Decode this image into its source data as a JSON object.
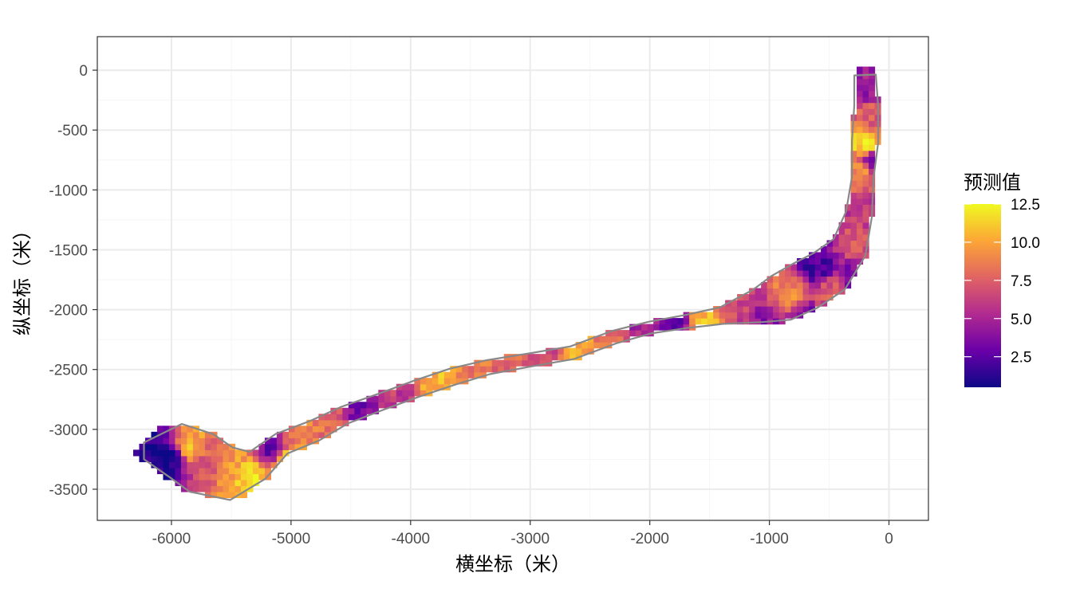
{
  "chart_data": {
    "type": "heatmap",
    "xlabel": "横坐标（米）",
    "ylabel": "纵坐标（米）",
    "xlim": [
      -6620,
      330
    ],
    "ylim": [
      -3760,
      280
    ],
    "x_ticks": [
      -6000,
      -5000,
      -4000,
      -3000,
      -2000,
      -1000,
      0
    ],
    "x_tick_labels": [
      "-6000",
      "-5000",
      "-4000",
      "-3000",
      "-2000",
      "-1000",
      "0"
    ],
    "y_ticks": [
      0,
      -500,
      -1000,
      -1500,
      -2000,
      -2500,
      -3000,
      -3500
    ],
    "y_tick_labels": [
      "0",
      "-500",
      "-1000",
      "-1500",
      "-2000",
      "-2500",
      "-3000",
      "-3500"
    ],
    "grid": true,
    "legend": {
      "title": "预测值",
      "placement": "right",
      "min": 0.5,
      "max": 12.5,
      "breaks": [
        2.5,
        5.0,
        7.5,
        10.0,
        12.5
      ],
      "break_labels": [
        "2.5",
        "5.0",
        "7.5",
        "10.0",
        "12.5"
      ],
      "palette": [
        "#0d0887",
        "#6a00a8",
        "#b12a90",
        "#e16462",
        "#fca636",
        "#f0f921"
      ]
    },
    "boundary_color": "#888888",
    "cell_size": 50,
    "centerline": [
      [
        -6230,
        -3180
      ],
      [
        -5960,
        -3180
      ],
      [
        -5750,
        -3280
      ],
      [
        -5500,
        -3370
      ],
      [
        -5280,
        -3300
      ],
      [
        -5080,
        -3120
      ],
      [
        -4800,
        -3010
      ],
      [
        -4550,
        -2880
      ],
      [
        -4250,
        -2770
      ],
      [
        -3950,
        -2660
      ],
      [
        -3650,
        -2560
      ],
      [
        -3350,
        -2480
      ],
      [
        -3000,
        -2420
      ],
      [
        -2650,
        -2360
      ],
      [
        -2300,
        -2230
      ],
      [
        -2000,
        -2150
      ],
      [
        -1700,
        -2100
      ],
      [
        -1400,
        -2050
      ],
      [
        -1100,
        -1970
      ],
      [
        -900,
        -1900
      ],
      [
        -700,
        -1800
      ],
      [
        -500,
        -1680
      ],
      [
        -330,
        -1480
      ],
      [
        -250,
        -1200
      ],
      [
        -220,
        -900
      ],
      [
        -200,
        -600
      ],
      [
        -190,
        -300
      ],
      [
        -200,
        -40
      ]
    ],
    "half_widths": [
      70,
      230,
      260,
      220,
      130,
      95,
      90,
      75,
      70,
      70,
      70,
      60,
      55,
      55,
      55,
      50,
      55,
      70,
      140,
      200,
      210,
      200,
      150,
      110,
      90,
      110,
      100,
      90
    ],
    "anchors": [
      [
        -6150,
        -3200,
        1.0
      ],
      [
        -6000,
        -3230,
        0.8
      ],
      [
        -5850,
        -3150,
        10.5
      ],
      [
        -5700,
        -3280,
        7.0
      ],
      [
        -5500,
        -3300,
        9.5
      ],
      [
        -5350,
        -3380,
        11.5
      ],
      [
        -5150,
        -3180,
        3.0
      ],
      [
        -5050,
        -3250,
        11.0
      ],
      [
        -4900,
        -3020,
        9.0
      ],
      [
        -4650,
        -2980,
        8.0
      ],
      [
        -4400,
        -2860,
        3.5
      ],
      [
        -4100,
        -2730,
        6.0
      ],
      [
        -3750,
        -2600,
        10.5
      ],
      [
        -3500,
        -2520,
        8.5
      ],
      [
        -3200,
        -2460,
        8.0
      ],
      [
        -2900,
        -2400,
        6.5
      ],
      [
        -2600,
        -2350,
        10.0
      ],
      [
        -2300,
        -2260,
        8.0
      ],
      [
        -2050,
        -2160,
        5.0
      ],
      [
        -1800,
        -2110,
        3.0
      ],
      [
        -1550,
        -2090,
        10.5
      ],
      [
        -1250,
        -2000,
        6.5
      ],
      [
        -1050,
        -2080,
        4.0
      ],
      [
        -850,
        -1870,
        9.0
      ],
      [
        -700,
        -2120,
        2.5
      ],
      [
        -600,
        -1620,
        2.0
      ],
      [
        -450,
        -1850,
        7.5
      ],
      [
        -300,
        -1750,
        3.0
      ],
      [
        -280,
        -1450,
        7.0
      ],
      [
        -250,
        -1150,
        6.0
      ],
      [
        -230,
        -850,
        9.0
      ],
      [
        -200,
        -600,
        11.5
      ],
      [
        -160,
        -400,
        7.5
      ],
      [
        -220,
        -150,
        4.5
      ],
      [
        -130,
        -780,
        3.0
      ]
    ]
  }
}
